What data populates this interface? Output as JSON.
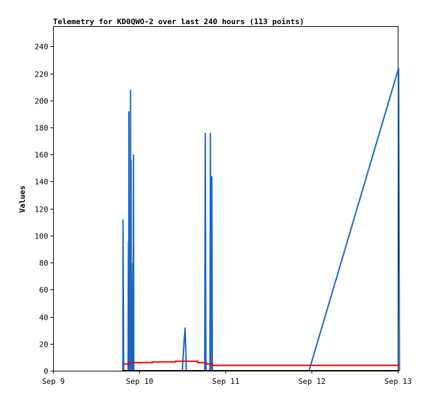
{
  "chart_data": {
    "type": "line",
    "title": "Telemetry for KD0QWO-2 over last 240 hours (113 points)",
    "xlabel": "",
    "ylabel": "Values",
    "grid": false,
    "legend": "none",
    "xlim": [
      0,
      4
    ],
    "ylim": [
      0,
      255
    ],
    "x_ticks": [
      {
        "value": 0,
        "label": "Sep 9"
      },
      {
        "value": 1,
        "label": "Sep 10"
      },
      {
        "value": 2,
        "label": "Sep 11"
      },
      {
        "value": 3,
        "label": "Sep 12"
      },
      {
        "value": 4,
        "label": "Sep 13"
      }
    ],
    "y_ticks": [
      0,
      20,
      40,
      60,
      80,
      100,
      120,
      140,
      160,
      180,
      200,
      220,
      240
    ],
    "series": [
      {
        "color": "#1a66c2",
        "points": [
          [
            0.81,
            0
          ],
          [
            0.812,
            112
          ],
          [
            0.815,
            64
          ],
          [
            0.82,
            0
          ],
          [
            0.87,
            0
          ],
          [
            0.874,
            96
          ],
          [
            0.878,
            0
          ],
          [
            0.88,
            192
          ],
          [
            0.884,
            0
          ],
          [
            0.89,
            0
          ],
          [
            0.894,
            104
          ],
          [
            0.897,
            0
          ],
          [
            0.899,
            208
          ],
          [
            0.903,
            0
          ],
          [
            0.905,
            156
          ],
          [
            0.909,
            0
          ],
          [
            0.911,
            52
          ],
          [
            0.914,
            0
          ],
          [
            0.926,
            80
          ],
          [
            0.929,
            0
          ],
          [
            0.933,
            160
          ],
          [
            0.937,
            0
          ],
          [
            1.5,
            0
          ],
          [
            1.518,
            20
          ],
          [
            1.532,
            32
          ],
          [
            1.54,
            16
          ],
          [
            1.546,
            0
          ],
          [
            1.76,
            0
          ],
          [
            1.766,
            176
          ],
          [
            1.77,
            88
          ],
          [
            1.774,
            0
          ],
          [
            1.82,
            0
          ],
          [
            1.826,
            176
          ],
          [
            1.83,
            0
          ],
          [
            1.836,
            112
          ],
          [
            1.842,
            144
          ],
          [
            1.848,
            0
          ],
          [
            2.97,
            0
          ],
          [
            4.01,
            224
          ],
          [
            4.015,
            112
          ],
          [
            4.02,
            0
          ]
        ]
      },
      {
        "color": "#ee0000",
        "points": [
          [
            0.81,
            5
          ],
          [
            0.88,
            5
          ],
          [
            0.88,
            6
          ],
          [
            1.15,
            6
          ],
          [
            1.15,
            6.5
          ],
          [
            1.42,
            6.5
          ],
          [
            1.42,
            7
          ],
          [
            1.68,
            7
          ],
          [
            1.68,
            6
          ],
          [
            1.78,
            6
          ],
          [
            1.78,
            5
          ],
          [
            1.85,
            5
          ],
          [
            1.85,
            4
          ],
          [
            4.02,
            4
          ]
        ]
      },
      {
        "color": "#000000",
        "points": [
          [
            0.81,
            0
          ],
          [
            4.02,
            0
          ]
        ]
      }
    ]
  }
}
